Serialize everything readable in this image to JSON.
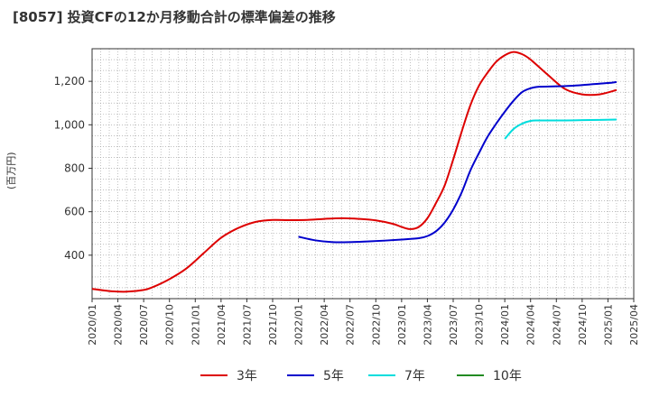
{
  "title": "[8057]  投資CFの12か月移動合計の標準偏差の推移",
  "chart_data": {
    "type": "line",
    "ylabel": "(百万円)",
    "ylim": [
      200,
      1350
    ],
    "yticks": [
      400,
      600,
      800,
      1000,
      1200
    ],
    "ytick_labels": [
      "400",
      "600",
      "800",
      "1,000",
      "1,200"
    ],
    "xticks": [
      "2020/01",
      "2020/04",
      "2020/07",
      "2020/10",
      "2021/01",
      "2021/04",
      "2021/07",
      "2021/10",
      "2022/01",
      "2022/04",
      "2022/07",
      "2022/10",
      "2023/01",
      "2023/04",
      "2023/07",
      "2023/10",
      "2024/01",
      "2024/04",
      "2024/07",
      "2024/10",
      "2025/01",
      "2025/04"
    ],
    "grid": true,
    "legend_position": "bottom",
    "series": [
      {
        "name": "3年",
        "color": "#dd0000",
        "points": [
          [
            "2020/01",
            245
          ],
          [
            "2020/03",
            235
          ],
          [
            "2020/05",
            232
          ],
          [
            "2020/07",
            240
          ],
          [
            "2020/08",
            252
          ],
          [
            "2020/10",
            290
          ],
          [
            "2020/12",
            340
          ],
          [
            "2021/02",
            410
          ],
          [
            "2021/04",
            480
          ],
          [
            "2021/06",
            525
          ],
          [
            "2021/08",
            553
          ],
          [
            "2021/10",
            562
          ],
          [
            "2021/12",
            561
          ],
          [
            "2022/02",
            562
          ],
          [
            "2022/04",
            567
          ],
          [
            "2022/06",
            570
          ],
          [
            "2022/08",
            567
          ],
          [
            "2022/10",
            560
          ],
          [
            "2022/12",
            544
          ],
          [
            "2023/01",
            530
          ],
          [
            "2023/02",
            520
          ],
          [
            "2023/03",
            530
          ],
          [
            "2023/04",
            570
          ],
          [
            "2023/05",
            640
          ],
          [
            "2023/06",
            720
          ],
          [
            "2023/07",
            840
          ],
          [
            "2023/08",
            970
          ],
          [
            "2023/09",
            1090
          ],
          [
            "2023/10",
            1180
          ],
          [
            "2023/11",
            1240
          ],
          [
            "2023/12",
            1290
          ],
          [
            "2024/01",
            1320
          ],
          [
            "2024/02",
            1335
          ],
          [
            "2024/03",
            1325
          ],
          [
            "2024/04",
            1300
          ],
          [
            "2024/06",
            1230
          ],
          [
            "2024/08",
            1165
          ],
          [
            "2024/10",
            1140
          ],
          [
            "2024/12",
            1140
          ],
          [
            "2025/02",
            1160
          ]
        ]
      },
      {
        "name": "5年",
        "color": "#0000cc",
        "points": [
          [
            "2022/01",
            485
          ],
          [
            "2022/03",
            468
          ],
          [
            "2022/05",
            460
          ],
          [
            "2022/07",
            460
          ],
          [
            "2022/09",
            463
          ],
          [
            "2022/11",
            467
          ],
          [
            "2023/01",
            472
          ],
          [
            "2023/03",
            478
          ],
          [
            "2023/04",
            488
          ],
          [
            "2023/05",
            510
          ],
          [
            "2023/06",
            550
          ],
          [
            "2023/07",
            610
          ],
          [
            "2023/08",
            690
          ],
          [
            "2023/09",
            790
          ],
          [
            "2023/10",
            870
          ],
          [
            "2023/11",
            945
          ],
          [
            "2023/12",
            1005
          ],
          [
            "2024/01",
            1060
          ],
          [
            "2024/02",
            1110
          ],
          [
            "2024/03",
            1150
          ],
          [
            "2024/04",
            1168
          ],
          [
            "2024/05",
            1175
          ],
          [
            "2024/07",
            1177
          ],
          [
            "2024/09",
            1180
          ],
          [
            "2024/11",
            1186
          ],
          [
            "2025/01",
            1192
          ],
          [
            "2025/02",
            1197
          ]
        ]
      },
      {
        "name": "7年",
        "color": "#00dddd",
        "points": [
          [
            "2024/01",
            935
          ],
          [
            "2024/02",
            980
          ],
          [
            "2024/03",
            1005
          ],
          [
            "2024/04",
            1018
          ],
          [
            "2024/05",
            1020
          ],
          [
            "2024/08",
            1020
          ],
          [
            "2024/11",
            1022
          ],
          [
            "2025/02",
            1024
          ]
        ]
      },
      {
        "name": "10年",
        "color": "#228b22",
        "points": []
      }
    ]
  }
}
